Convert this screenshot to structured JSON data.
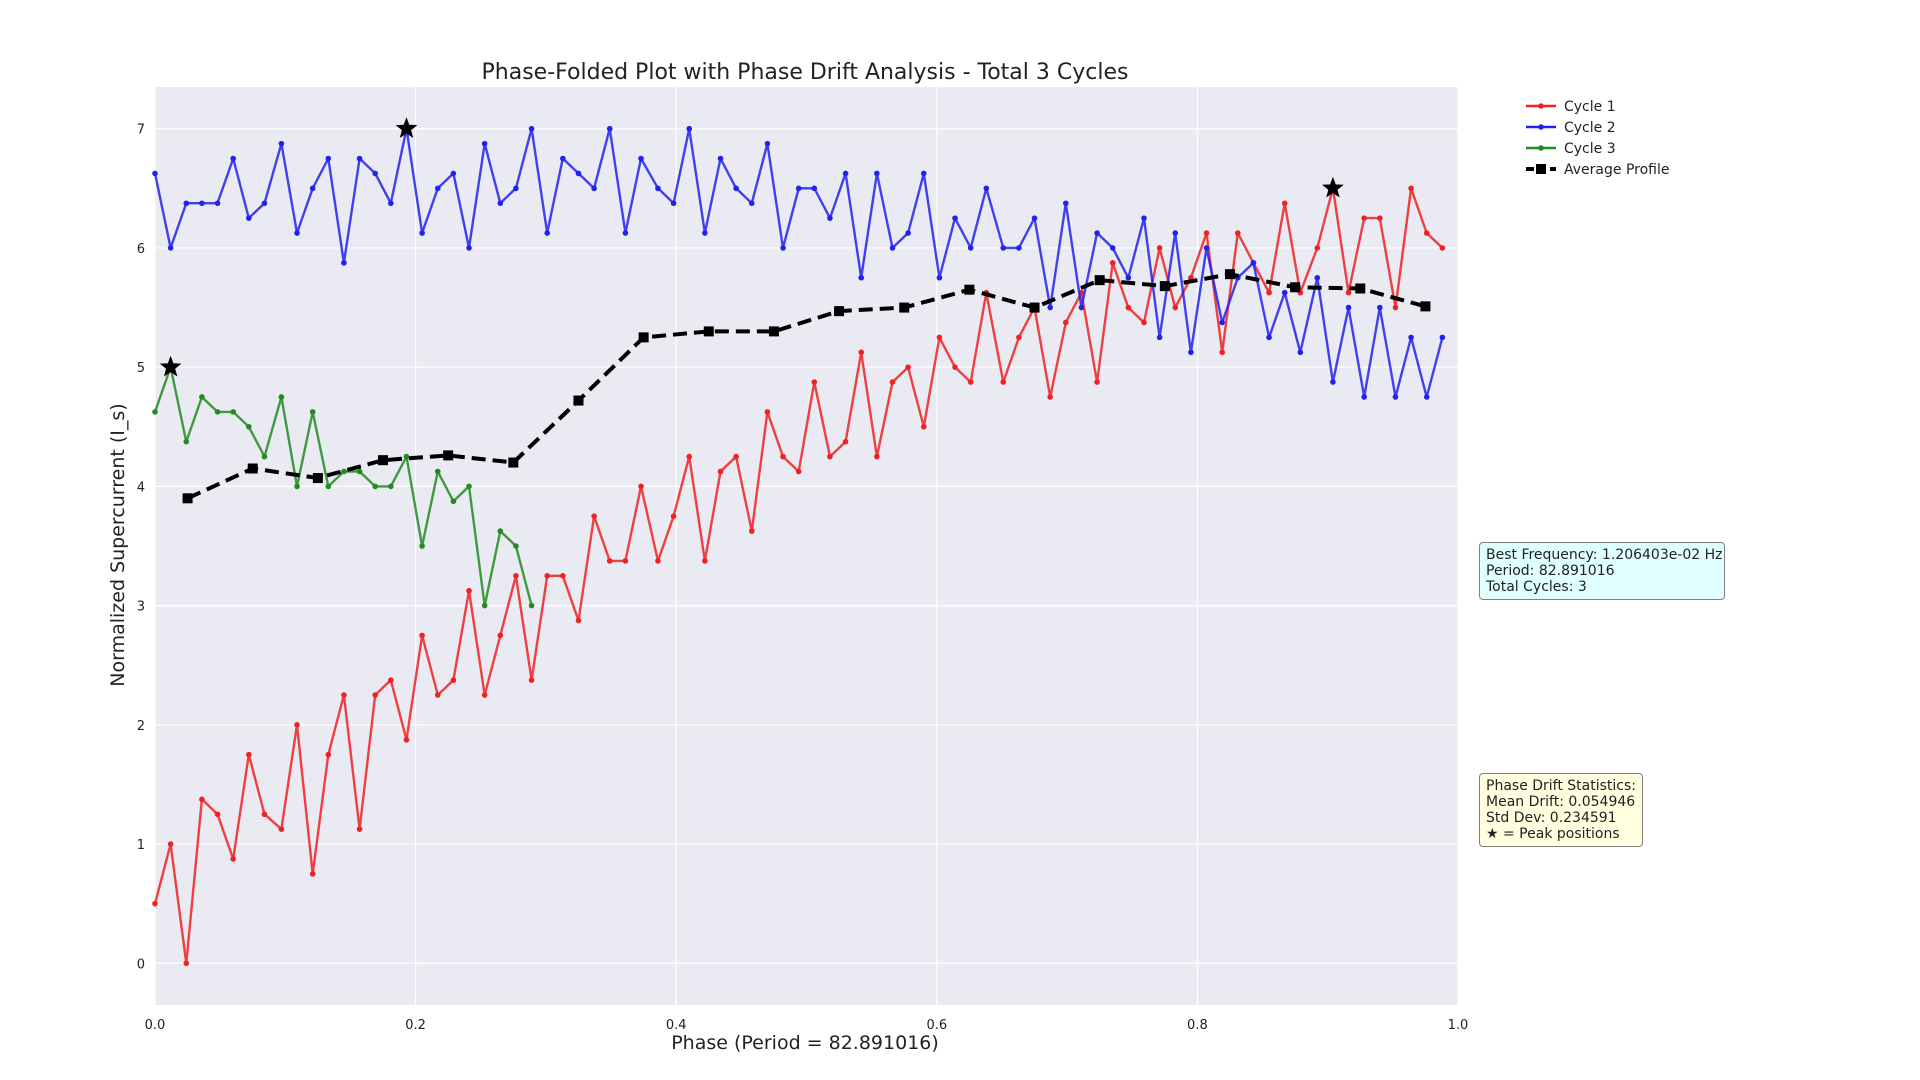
{
  "chart_data": {
    "type": "line",
    "title": "Phase-Folded Plot with Phase Drift Analysis - Total 3 Cycles",
    "xlabel": "Phase (Period = 82.891016)",
    "ylabel": "Normalized Supercurrent (I_s)",
    "xlim": [
      0.0,
      1.0
    ],
    "ylim": [
      -0.35,
      7.35
    ],
    "xticks": [
      "0.0",
      "0.2",
      "0.4",
      "0.6",
      "0.8",
      "1.0"
    ],
    "yticks": [
      "0",
      "1",
      "2",
      "3",
      "4",
      "5",
      "6",
      "7"
    ],
    "grid": true,
    "legend_position": "top-right, outside plot",
    "series": [
      {
        "name": "Cycle 1",
        "color": "#ee2222",
        "marker": "circle",
        "x": [
          0.0,
          0.012,
          0.024,
          0.036,
          0.048,
          0.06,
          0.072,
          0.084,
          0.097,
          0.109,
          0.121,
          0.133,
          0.145,
          0.157,
          0.169,
          0.181,
          0.193,
          0.205,
          0.217,
          0.229,
          0.241,
          0.253,
          0.265,
          0.277,
          0.289,
          0.301,
          0.313,
          0.325,
          0.337,
          0.349,
          0.361,
          0.373,
          0.386,
          0.398,
          0.41,
          0.422,
          0.434,
          0.446,
          0.458,
          0.47,
          0.482,
          0.494,
          0.506,
          0.518,
          0.53,
          0.542,
          0.554,
          0.566,
          0.578,
          0.59,
          0.602,
          0.614,
          0.626,
          0.638,
          0.651,
          0.663,
          0.675,
          0.687,
          0.699,
          0.711,
          0.723,
          0.735,
          0.747,
          0.759,
          0.771,
          0.783,
          0.795,
          0.807,
          0.819,
          0.831,
          0.843,
          0.855,
          0.867,
          0.879,
          0.892,
          0.904,
          0.916,
          0.928,
          0.94,
          0.952,
          0.964,
          0.976,
          0.988
        ],
        "y": [
          0.5,
          1.0,
          0.0,
          1.375,
          1.25,
          0.875,
          1.75,
          1.25,
          1.125,
          2.0,
          0.75,
          1.75,
          2.25,
          1.125,
          2.25,
          2.375,
          1.875,
          2.75,
          2.25,
          2.375,
          3.125,
          2.25,
          2.75,
          3.25,
          2.375,
          3.25,
          3.25,
          2.875,
          3.75,
          3.375,
          3.375,
          4.0,
          3.375,
          3.75,
          4.25,
          3.375,
          4.125,
          4.25,
          3.625,
          4.625,
          4.25,
          4.125,
          4.875,
          4.25,
          4.375,
          5.125,
          4.25,
          4.875,
          5.0,
          4.5,
          5.25,
          5.0,
          4.875,
          5.625,
          4.875,
          5.25,
          5.5,
          4.75,
          5.375,
          5.625,
          4.875,
          5.875,
          5.5,
          5.375,
          6.0,
          5.5,
          5.75,
          6.125,
          5.125,
          6.125,
          5.875,
          5.625,
          6.375,
          5.625,
          6.0,
          6.5,
          5.625,
          6.25,
          6.25,
          5.5,
          6.5,
          6.125,
          6.0
        ]
      },
      {
        "name": "Cycle 2",
        "color": "#2222ee",
        "marker": "circle",
        "x": [
          0.0,
          0.012,
          0.024,
          0.036,
          0.048,
          0.06,
          0.072,
          0.084,
          0.097,
          0.109,
          0.121,
          0.133,
          0.145,
          0.157,
          0.169,
          0.181,
          0.193,
          0.205,
          0.217,
          0.229,
          0.241,
          0.253,
          0.265,
          0.277,
          0.289,
          0.301,
          0.313,
          0.325,
          0.337,
          0.349,
          0.361,
          0.373,
          0.386,
          0.398,
          0.41,
          0.422,
          0.434,
          0.446,
          0.458,
          0.47,
          0.482,
          0.494,
          0.506,
          0.518,
          0.53,
          0.542,
          0.554,
          0.566,
          0.578,
          0.59,
          0.602,
          0.614,
          0.626,
          0.638,
          0.651,
          0.663,
          0.675,
          0.687,
          0.699,
          0.711,
          0.723,
          0.735,
          0.747,
          0.759,
          0.771,
          0.783,
          0.795,
          0.807,
          0.819,
          0.831,
          0.843,
          0.855,
          0.867,
          0.879,
          0.892,
          0.904,
          0.916,
          0.928,
          0.94,
          0.952,
          0.964,
          0.976,
          0.988
        ],
        "y": [
          6.625,
          6.0,
          6.375,
          6.375,
          6.375,
          6.75,
          6.25,
          6.375,
          6.875,
          6.125,
          6.5,
          6.75,
          5.875,
          6.75,
          6.625,
          6.375,
          7.0,
          6.125,
          6.5,
          6.625,
          6.0,
          6.875,
          6.375,
          6.5,
          7.0,
          6.125,
          6.75,
          6.625,
          6.5,
          7.0,
          6.125,
          6.75,
          6.5,
          6.375,
          7.0,
          6.125,
          6.75,
          6.5,
          6.375,
          6.875,
          6.0,
          6.5,
          6.5,
          6.25,
          6.625,
          5.75,
          6.625,
          6.0,
          6.125,
          6.625,
          5.75,
          6.25,
          6.0,
          6.5,
          6.0,
          6.0,
          6.25,
          5.5,
          6.375,
          5.5,
          6.125,
          6.0,
          5.75,
          6.25,
          5.25,
          6.125,
          5.125,
          6.0,
          5.375,
          5.75,
          5.875,
          5.25,
          5.625,
          5.125,
          5.75,
          4.875,
          5.5,
          4.75,
          5.5,
          4.75,
          5.25,
          4.75,
          5.25
        ]
      },
      {
        "name": "Cycle 3",
        "color": "#228b22",
        "marker": "circle",
        "x": [
          0.0,
          0.012,
          0.024,
          0.036,
          0.048,
          0.06,
          0.072,
          0.084,
          0.097,
          0.109,
          0.121,
          0.133,
          0.145,
          0.157,
          0.169,
          0.181,
          0.193,
          0.205,
          0.217,
          0.229,
          0.241,
          0.253,
          0.265,
          0.277,
          0.289
        ],
        "y": [
          4.625,
          5.0,
          4.375,
          4.75,
          4.625,
          4.625,
          4.5,
          4.25,
          4.75,
          4.0,
          4.625,
          4.0,
          4.125,
          4.125,
          4.0,
          4.0,
          4.25,
          3.5,
          4.125,
          3.875,
          4.0,
          3.0,
          3.625,
          3.5,
          3.0
        ]
      },
      {
        "name": "Average Profile",
        "color": "#000000",
        "marker": "square",
        "dashed": true,
        "x": [
          0.025,
          0.075,
          0.125,
          0.175,
          0.225,
          0.275,
          0.325,
          0.375,
          0.425,
          0.475,
          0.525,
          0.575,
          0.625,
          0.675,
          0.725,
          0.775,
          0.825,
          0.875,
          0.925,
          0.975
        ],
        "y": [
          3.9,
          4.15,
          4.07,
          4.22,
          4.26,
          4.2,
          4.72,
          5.25,
          5.3,
          5.3,
          5.47,
          5.5,
          5.65,
          5.5,
          5.73,
          5.68,
          5.78,
          5.67,
          5.66,
          5.51
        ]
      }
    ],
    "peak_markers": [
      {
        "x": 0.012,
        "y": 5.0
      },
      {
        "x": 0.193,
        "y": 7.0
      },
      {
        "x": 0.904,
        "y": 6.5
      }
    ]
  },
  "info": {
    "freq_box": "Best Frequency: 1.206403e-02 Hz\nPeriod: 82.891016\nTotal Cycles: 3",
    "drift_box": "Phase Drift Statistics:\nMean Drift: 0.054946\nStd Dev: 0.234591\n★ = Peak positions"
  }
}
